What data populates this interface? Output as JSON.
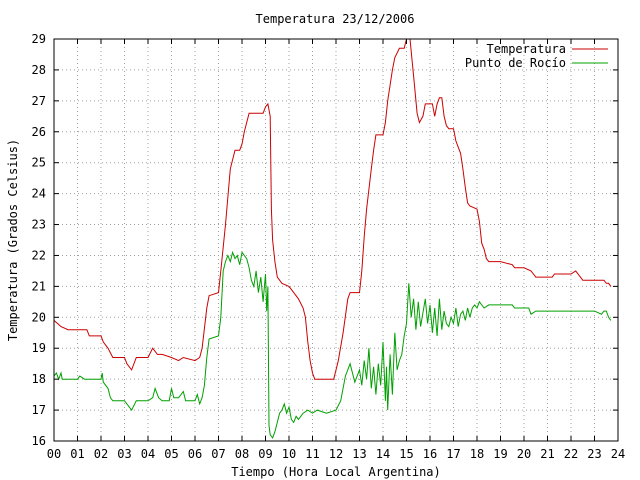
{
  "chart_data": {
    "type": "line",
    "title": "Temperatura 23/12/2006",
    "xlabel": "Tiempo (Hora Local Argentina)",
    "ylabel": "Temperatura (Grados Celsius)",
    "xlim": [
      0,
      24
    ],
    "ylim": [
      16,
      29
    ],
    "grid": true,
    "legend_position": "top-right",
    "x_ticks": [
      "00",
      "01",
      "02",
      "03",
      "04",
      "05",
      "06",
      "07",
      "08",
      "09",
      "10",
      "11",
      "12",
      "13",
      "14",
      "15",
      "16",
      "17",
      "18",
      "19",
      "20",
      "21",
      "22",
      "23",
      "24"
    ],
    "y_ticks": [
      "16",
      "17",
      "18",
      "19",
      "20",
      "21",
      "22",
      "23",
      "24",
      "25",
      "26",
      "27",
      "28",
      "29"
    ],
    "series": [
      {
        "name": "Temperatura",
        "color": "#cc0000",
        "points": [
          [
            0.0,
            19.9
          ],
          [
            0.15,
            19.8
          ],
          [
            0.3,
            19.7
          ],
          [
            0.6,
            19.6
          ],
          [
            1.0,
            19.6
          ],
          [
            1.4,
            19.6
          ],
          [
            1.5,
            19.4
          ],
          [
            2.0,
            19.4
          ],
          [
            2.1,
            19.2
          ],
          [
            2.3,
            19.0
          ],
          [
            2.5,
            18.7
          ],
          [
            2.8,
            18.7
          ],
          [
            3.0,
            18.7
          ],
          [
            3.1,
            18.5
          ],
          [
            3.3,
            18.3
          ],
          [
            3.5,
            18.7
          ],
          [
            4.0,
            18.7
          ],
          [
            4.2,
            19.0
          ],
          [
            4.4,
            18.8
          ],
          [
            4.6,
            18.8
          ],
          [
            5.0,
            18.7
          ],
          [
            5.3,
            18.6
          ],
          [
            5.5,
            18.7
          ],
          [
            6.0,
            18.6
          ],
          [
            6.2,
            18.7
          ],
          [
            6.3,
            19.0
          ],
          [
            6.5,
            20.3
          ],
          [
            6.6,
            20.7
          ],
          [
            7.0,
            20.8
          ],
          [
            7.1,
            21.5
          ],
          [
            7.3,
            23.0
          ],
          [
            7.5,
            24.8
          ],
          [
            7.7,
            25.4
          ],
          [
            7.9,
            25.4
          ],
          [
            8.0,
            25.6
          ],
          [
            8.1,
            26.0
          ],
          [
            8.2,
            26.3
          ],
          [
            8.3,
            26.6
          ],
          [
            8.5,
            26.6
          ],
          [
            8.9,
            26.6
          ],
          [
            9.0,
            26.8
          ],
          [
            9.1,
            26.9
          ],
          [
            9.2,
            26.5
          ],
          [
            9.25,
            23.5
          ],
          [
            9.3,
            22.5
          ],
          [
            9.4,
            21.8
          ],
          [
            9.5,
            21.3
          ],
          [
            9.7,
            21.1
          ],
          [
            10.0,
            21.0
          ],
          [
            10.2,
            20.8
          ],
          [
            10.4,
            20.6
          ],
          [
            10.6,
            20.3
          ],
          [
            10.7,
            20.0
          ],
          [
            10.8,
            19.2
          ],
          [
            10.9,
            18.6
          ],
          [
            11.0,
            18.2
          ],
          [
            11.1,
            18.0
          ],
          [
            11.5,
            18.0
          ],
          [
            11.9,
            18.0
          ],
          [
            12.1,
            18.6
          ],
          [
            12.3,
            19.5
          ],
          [
            12.5,
            20.6
          ],
          [
            12.6,
            20.8
          ],
          [
            13.0,
            20.8
          ],
          [
            13.1,
            21.5
          ],
          [
            13.2,
            22.6
          ],
          [
            13.3,
            23.5
          ],
          [
            13.5,
            24.8
          ],
          [
            13.6,
            25.4
          ],
          [
            13.7,
            25.9
          ],
          [
            14.0,
            25.9
          ],
          [
            14.1,
            26.3
          ],
          [
            14.2,
            27.0
          ],
          [
            14.4,
            28.0
          ],
          [
            14.5,
            28.4
          ],
          [
            14.7,
            28.7
          ],
          [
            14.9,
            28.7
          ],
          [
            15.0,
            29.0
          ],
          [
            15.15,
            29.0
          ],
          [
            15.3,
            27.8
          ],
          [
            15.45,
            26.6
          ],
          [
            15.55,
            26.3
          ],
          [
            15.7,
            26.5
          ],
          [
            15.8,
            26.9
          ],
          [
            16.1,
            26.9
          ],
          [
            16.2,
            26.5
          ],
          [
            16.3,
            26.9
          ],
          [
            16.4,
            27.1
          ],
          [
            16.5,
            27.1
          ],
          [
            16.6,
            26.5
          ],
          [
            16.7,
            26.2
          ],
          [
            16.8,
            26.1
          ],
          [
            17.0,
            26.1
          ],
          [
            17.1,
            25.7
          ],
          [
            17.3,
            25.3
          ],
          [
            17.4,
            24.8
          ],
          [
            17.5,
            24.2
          ],
          [
            17.6,
            23.7
          ],
          [
            17.7,
            23.6
          ],
          [
            18.0,
            23.5
          ],
          [
            18.1,
            23.1
          ],
          [
            18.2,
            22.4
          ],
          [
            18.3,
            22.2
          ],
          [
            18.4,
            21.9
          ],
          [
            18.5,
            21.8
          ],
          [
            19.0,
            21.8
          ],
          [
            19.5,
            21.7
          ],
          [
            19.6,
            21.6
          ],
          [
            20.0,
            21.6
          ],
          [
            20.3,
            21.5
          ],
          [
            20.4,
            21.4
          ],
          [
            20.5,
            21.3
          ],
          [
            21.0,
            21.3
          ],
          [
            21.2,
            21.3
          ],
          [
            21.3,
            21.4
          ],
          [
            21.5,
            21.4
          ],
          [
            22.0,
            21.4
          ],
          [
            22.2,
            21.5
          ],
          [
            22.4,
            21.3
          ],
          [
            22.5,
            21.2
          ],
          [
            23.0,
            21.2
          ],
          [
            23.4,
            21.2
          ],
          [
            23.5,
            21.1
          ],
          [
            23.6,
            21.1
          ],
          [
            23.7,
            21.0
          ]
        ]
      },
      {
        "name": "Punto de Rocío",
        "color": "#00a000",
        "points": [
          [
            0.0,
            18.1
          ],
          [
            0.1,
            18.2
          ],
          [
            0.2,
            18.0
          ],
          [
            0.3,
            18.2
          ],
          [
            0.35,
            18.0
          ],
          [
            0.5,
            18.0
          ],
          [
            1.0,
            18.0
          ],
          [
            1.1,
            18.1
          ],
          [
            1.3,
            18.0
          ],
          [
            2.0,
            18.0
          ],
          [
            2.05,
            18.2
          ],
          [
            2.1,
            17.9
          ],
          [
            2.3,
            17.7
          ],
          [
            2.4,
            17.4
          ],
          [
            2.5,
            17.3
          ],
          [
            3.0,
            17.3
          ],
          [
            3.1,
            17.2
          ],
          [
            3.3,
            17.0
          ],
          [
            3.5,
            17.3
          ],
          [
            4.0,
            17.3
          ],
          [
            4.2,
            17.4
          ],
          [
            4.3,
            17.7
          ],
          [
            4.45,
            17.4
          ],
          [
            4.6,
            17.3
          ],
          [
            4.9,
            17.3
          ],
          [
            5.0,
            17.7
          ],
          [
            5.1,
            17.4
          ],
          [
            5.3,
            17.4
          ],
          [
            5.5,
            17.6
          ],
          [
            5.6,
            17.3
          ],
          [
            6.0,
            17.3
          ],
          [
            6.1,
            17.5
          ],
          [
            6.2,
            17.2
          ],
          [
            6.3,
            17.4
          ],
          [
            6.4,
            17.8
          ],
          [
            6.5,
            18.7
          ],
          [
            6.6,
            19.3
          ],
          [
            7.0,
            19.4
          ],
          [
            7.1,
            20.0
          ],
          [
            7.2,
            21.5
          ],
          [
            7.3,
            21.8
          ],
          [
            7.4,
            22.0
          ],
          [
            7.5,
            21.8
          ],
          [
            7.6,
            22.1
          ],
          [
            7.7,
            21.9
          ],
          [
            7.8,
            22.0
          ],
          [
            7.9,
            21.7
          ],
          [
            8.0,
            22.1
          ],
          [
            8.1,
            22.0
          ],
          [
            8.2,
            21.9
          ],
          [
            8.3,
            21.6
          ],
          [
            8.4,
            21.2
          ],
          [
            8.5,
            21.0
          ],
          [
            8.6,
            21.5
          ],
          [
            8.7,
            20.8
          ],
          [
            8.8,
            21.3
          ],
          [
            8.9,
            20.5
          ],
          [
            9.0,
            21.4
          ],
          [
            9.05,
            20.2
          ],
          [
            9.1,
            21.0
          ],
          [
            9.15,
            16.5
          ],
          [
            9.2,
            16.2
          ],
          [
            9.3,
            16.1
          ],
          [
            9.4,
            16.3
          ],
          [
            9.5,
            16.6
          ],
          [
            9.6,
            16.9
          ],
          [
            9.7,
            17.0
          ],
          [
            9.8,
            17.2
          ],
          [
            9.9,
            16.9
          ],
          [
            10.0,
            17.1
          ],
          [
            10.1,
            16.7
          ],
          [
            10.2,
            16.6
          ],
          [
            10.3,
            16.8
          ],
          [
            10.4,
            16.7
          ],
          [
            10.5,
            16.8
          ],
          [
            10.6,
            16.9
          ],
          [
            10.8,
            17.0
          ],
          [
            11.0,
            16.9
          ],
          [
            11.2,
            17.0
          ],
          [
            11.6,
            16.9
          ],
          [
            12.0,
            17.0
          ],
          [
            12.2,
            17.3
          ],
          [
            12.4,
            18.1
          ],
          [
            12.6,
            18.5
          ],
          [
            12.8,
            17.9
          ],
          [
            13.0,
            18.3
          ],
          [
            13.1,
            17.8
          ],
          [
            13.2,
            18.6
          ],
          [
            13.3,
            18.0
          ],
          [
            13.4,
            19.0
          ],
          [
            13.5,
            17.7
          ],
          [
            13.6,
            18.4
          ],
          [
            13.7,
            17.5
          ],
          [
            13.8,
            18.5
          ],
          [
            13.9,
            17.8
          ],
          [
            14.0,
            19.2
          ],
          [
            14.1,
            17.3
          ],
          [
            14.15,
            18.4
          ],
          [
            14.2,
            17.0
          ],
          [
            14.3,
            18.8
          ],
          [
            14.4,
            17.5
          ],
          [
            14.5,
            19.5
          ],
          [
            14.6,
            18.3
          ],
          [
            14.7,
            18.6
          ],
          [
            14.8,
            18.8
          ],
          [
            14.9,
            19.4
          ],
          [
            15.0,
            19.8
          ],
          [
            15.1,
            21.1
          ],
          [
            15.2,
            20.0
          ],
          [
            15.3,
            20.6
          ],
          [
            15.4,
            19.6
          ],
          [
            15.5,
            20.5
          ],
          [
            15.6,
            19.7
          ],
          [
            15.8,
            20.6
          ],
          [
            15.9,
            19.8
          ],
          [
            16.0,
            20.4
          ],
          [
            16.1,
            19.5
          ],
          [
            16.2,
            20.3
          ],
          [
            16.3,
            19.4
          ],
          [
            16.4,
            20.6
          ],
          [
            16.5,
            19.6
          ],
          [
            16.6,
            20.2
          ],
          [
            16.7,
            19.8
          ],
          [
            16.8,
            19.7
          ],
          [
            16.9,
            20.0
          ],
          [
            17.0,
            19.8
          ],
          [
            17.1,
            20.3
          ],
          [
            17.2,
            19.7
          ],
          [
            17.3,
            20.1
          ],
          [
            17.4,
            20.2
          ],
          [
            17.5,
            19.9
          ],
          [
            17.6,
            20.3
          ],
          [
            17.7,
            20.0
          ],
          [
            17.8,
            20.3
          ],
          [
            17.9,
            20.4
          ],
          [
            18.0,
            20.3
          ],
          [
            18.1,
            20.5
          ],
          [
            18.3,
            20.3
          ],
          [
            18.5,
            20.4
          ],
          [
            19.0,
            20.4
          ],
          [
            19.5,
            20.4
          ],
          [
            19.6,
            20.3
          ],
          [
            20.0,
            20.3
          ],
          [
            20.2,
            20.3
          ],
          [
            20.3,
            20.1
          ],
          [
            20.5,
            20.2
          ],
          [
            21.0,
            20.2
          ],
          [
            21.5,
            20.2
          ],
          [
            22.0,
            20.2
          ],
          [
            22.5,
            20.2
          ],
          [
            23.0,
            20.2
          ],
          [
            23.3,
            20.1
          ],
          [
            23.4,
            20.2
          ],
          [
            23.5,
            20.2
          ],
          [
            23.6,
            20.0
          ],
          [
            23.7,
            19.9
          ]
        ]
      }
    ]
  }
}
